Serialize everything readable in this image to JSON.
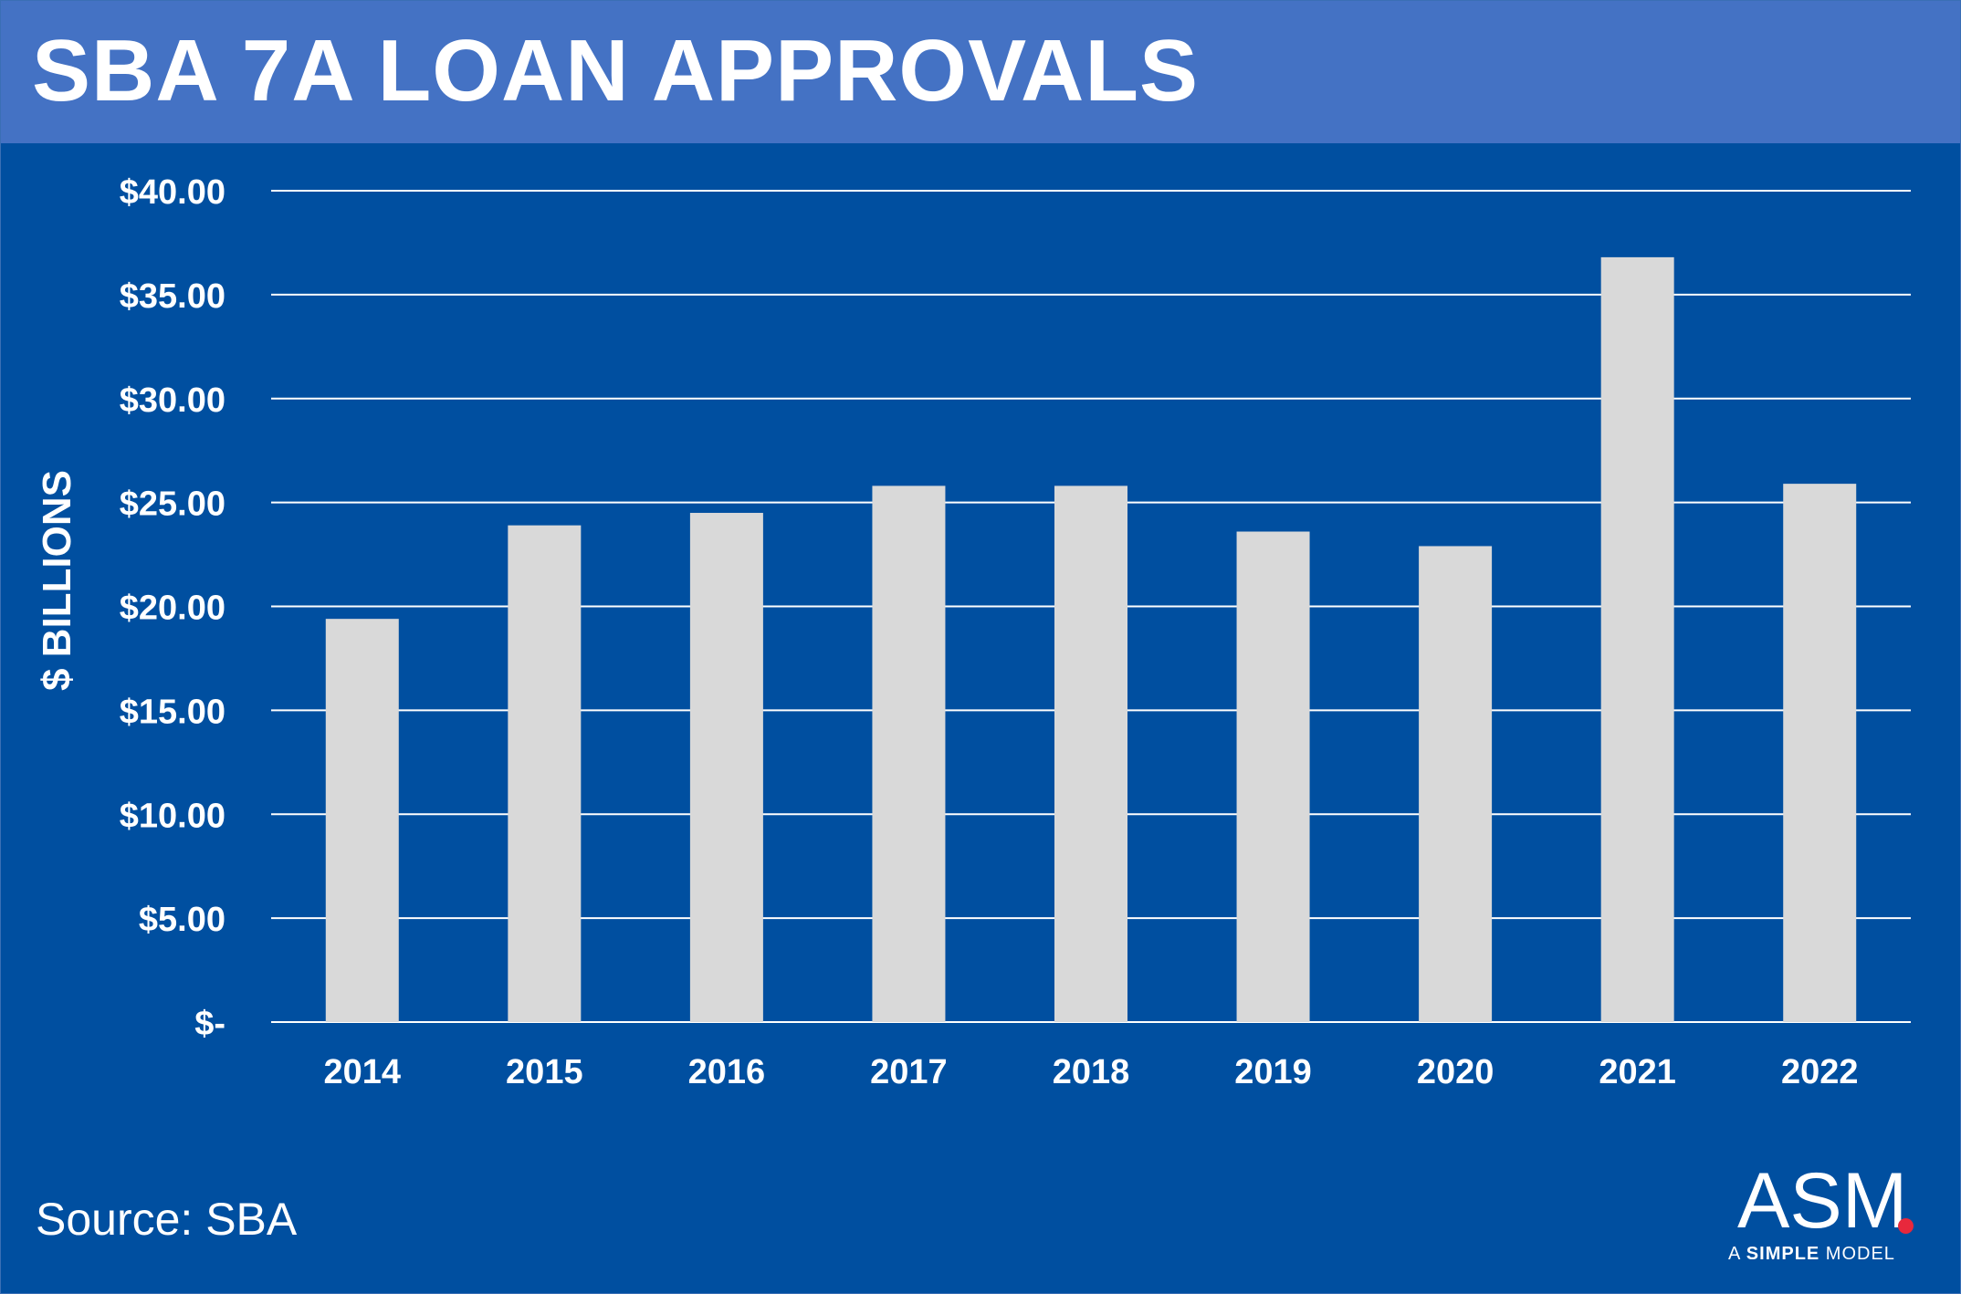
{
  "header": {
    "title": "SBA 7A LOAN APPROVALS"
  },
  "footer": {
    "source": "Source: SBA"
  },
  "logo": {
    "mark": "ASM",
    "tagline_prefix": "A ",
    "tagline_bold": "SIMPLE",
    "tagline_suffix": " MODEL",
    "dot_color": "#e8283c"
  },
  "colors": {
    "background": "#004fa0",
    "title_bar": "#4472c4",
    "bar": "#d9d9d9",
    "gridline": "#ffffff",
    "text": "#ffffff"
  },
  "chart_data": {
    "type": "bar",
    "title": "SBA 7A LOAN APPROVALS",
    "xlabel": "",
    "ylabel": "$ BILLIONS",
    "categories": [
      "2014",
      "2015",
      "2016",
      "2017",
      "2018",
      "2019",
      "2020",
      "2021",
      "2022"
    ],
    "values": [
      19.4,
      23.9,
      24.5,
      25.8,
      25.8,
      23.6,
      22.9,
      36.8,
      25.9
    ],
    "ylim": [
      0,
      40
    ],
    "yticks": [
      0,
      5,
      10,
      15,
      20,
      25,
      30,
      35,
      40
    ],
    "ytick_labels": [
      "$-",
      "$5.00",
      "$10.00",
      "$15.00",
      "$20.00",
      "$25.00",
      "$30.00",
      "$35.00",
      "$40.00"
    ],
    "grid": true,
    "legend": "none"
  }
}
